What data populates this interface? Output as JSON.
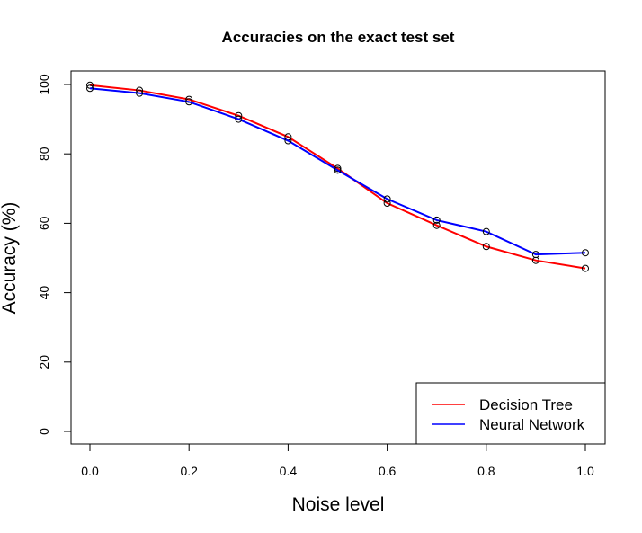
{
  "chart_data": {
    "type": "line",
    "title": "Accuracies on the exact test set",
    "xlabel": "Noise level",
    "ylabel": "Accuracy (%)",
    "x": [
      0.0,
      0.1,
      0.2,
      0.3,
      0.4,
      0.5,
      0.6,
      0.7,
      0.8,
      0.9,
      1.0
    ],
    "xlim": [
      0.0,
      1.0
    ],
    "ylim": [
      0,
      100
    ],
    "x_ticks": [
      "0.0",
      "0.2",
      "0.4",
      "0.6",
      "0.8",
      "1.0"
    ],
    "y_ticks": [
      "0",
      "20",
      "40",
      "60",
      "80",
      "100"
    ],
    "grid": false,
    "legend_position": "bottom-right",
    "series": [
      {
        "name": "Decision Tree",
        "color": "#ff0000",
        "values": [
          99.8,
          98.3,
          95.7,
          91.0,
          84.9,
          75.8,
          65.8,
          59.4,
          53.3,
          49.3,
          47.0
        ]
      },
      {
        "name": "Neural Network",
        "color": "#0000ff",
        "values": [
          98.9,
          97.5,
          95.0,
          90.0,
          83.8,
          75.3,
          67.0,
          60.9,
          57.6,
          51.0,
          51.5
        ]
      }
    ]
  }
}
